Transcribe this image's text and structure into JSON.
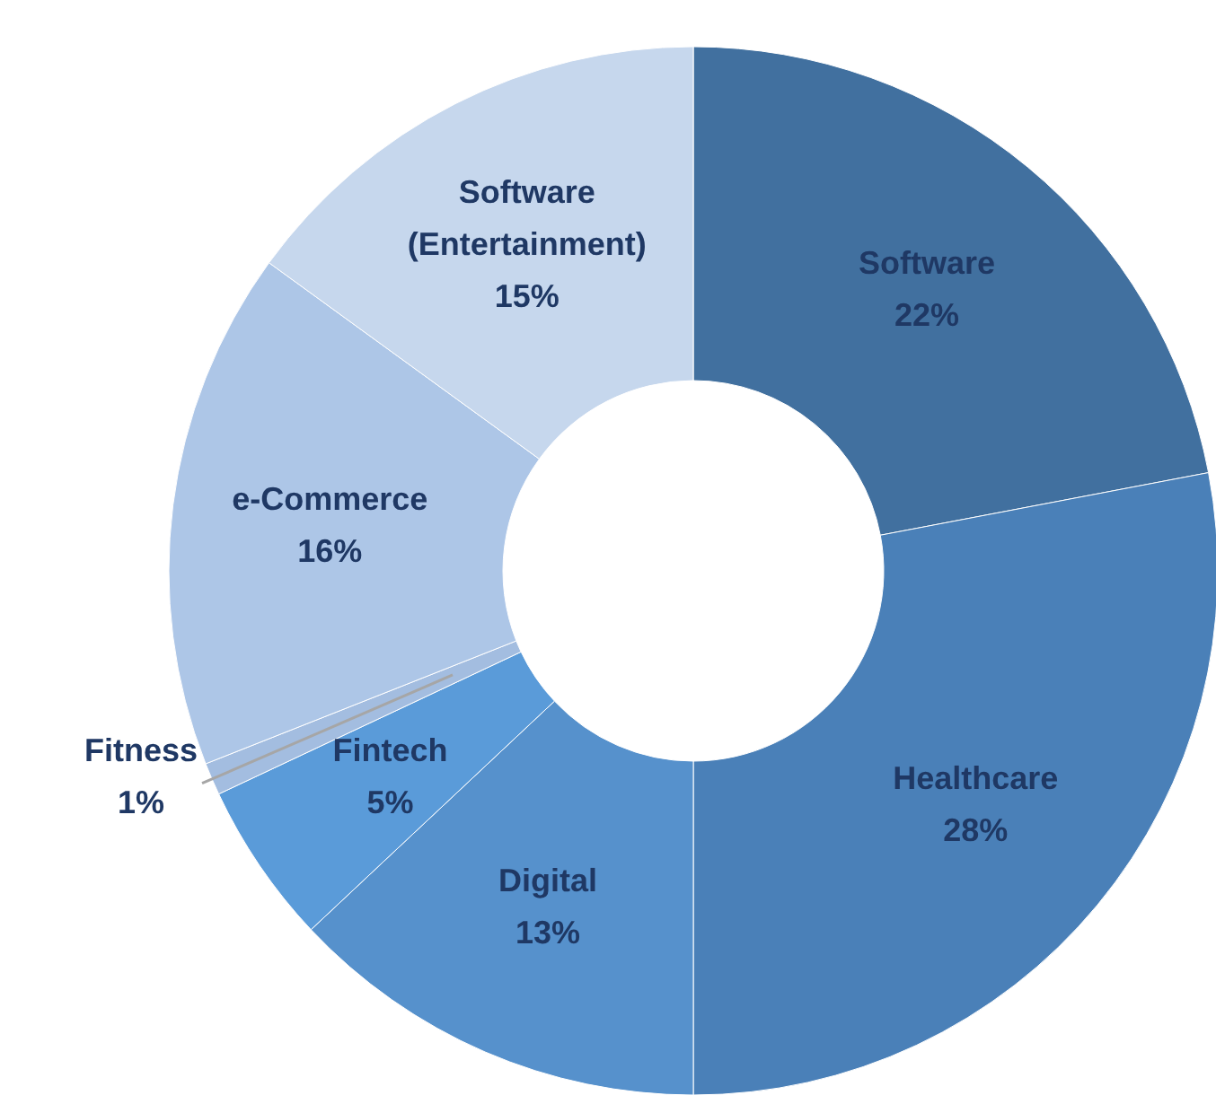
{
  "chart_data": {
    "type": "donut",
    "categories": [
      "Software",
      "Healthcare",
      "Digital",
      "Fintech",
      "Fitness",
      "e-Commerce",
      "Software (Entertainment)"
    ],
    "values": [
      22,
      28,
      13,
      5,
      1,
      16,
      15
    ],
    "value_labels": [
      "22%",
      "28%",
      "13%",
      "5%",
      "1%",
      "16%",
      "15%"
    ],
    "colors": [
      "#41709f",
      "#4a80b8",
      "#5691cc",
      "#5a9bd9",
      "#a3bde0",
      "#adc6e7",
      "#c6d7ed"
    ]
  }
}
